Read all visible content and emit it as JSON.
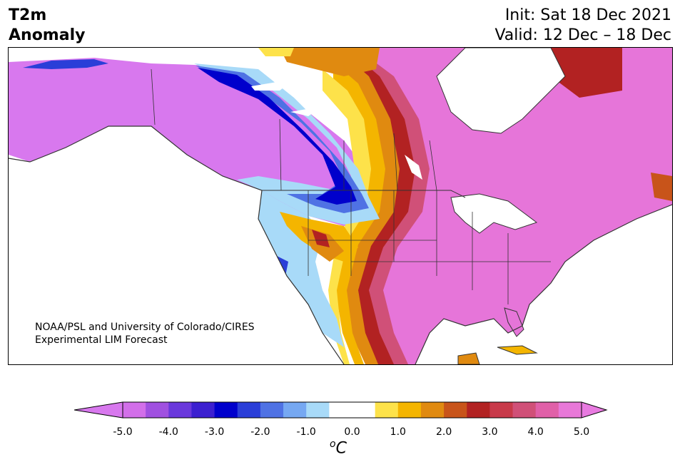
{
  "header": {
    "variable_line1": "T2m",
    "variable_line2": "Anomaly",
    "init_line": "Init: Sat 18 Dec 2021",
    "valid_line": "Valid: 12 Dec – 18 Dec"
  },
  "credit": {
    "line1": "NOAA/PSL and University of Colorado/CIRES",
    "line2": "Experimental LIM Forecast"
  },
  "colorbar": {
    "ticks": [
      "-5.0",
      "-4.0",
      "-3.0",
      "-2.0",
      "-1.0",
      "0.0",
      "1.0",
      "2.0",
      "3.0",
      "4.0",
      "5.0"
    ],
    "unit_base": "C",
    "unit_sup": "o",
    "colors": [
      "#d26fe9",
      "#a050e0",
      "#6a38dc",
      "#3c20d0",
      "#0000cc",
      "#2a3ed8",
      "#4f72e4",
      "#76a8f2",
      "#a8daf8",
      "#ffffff",
      "#ffffff",
      "#fde24a",
      "#f4b500",
      "#e08a10",
      "#c8541a",
      "#b22222",
      "#c83a4a",
      "#d05078",
      "#e060a8",
      "#e878d8"
    ],
    "under_color": "#d878ee",
    "over_color": "#e87ae0"
  },
  "map_colors": {
    "canada_west": "#d878ee",
    "us_east": "#e675d9",
    "dark_red": "#b22222",
    "orange": "#e08a10",
    "gold": "#f4b500",
    "yellow": "#fde24a",
    "blue_dark": "#0000cc",
    "blue_mid": "#4f72e4",
    "blue_light": "#a8daf8",
    "coast": "#333333"
  }
}
